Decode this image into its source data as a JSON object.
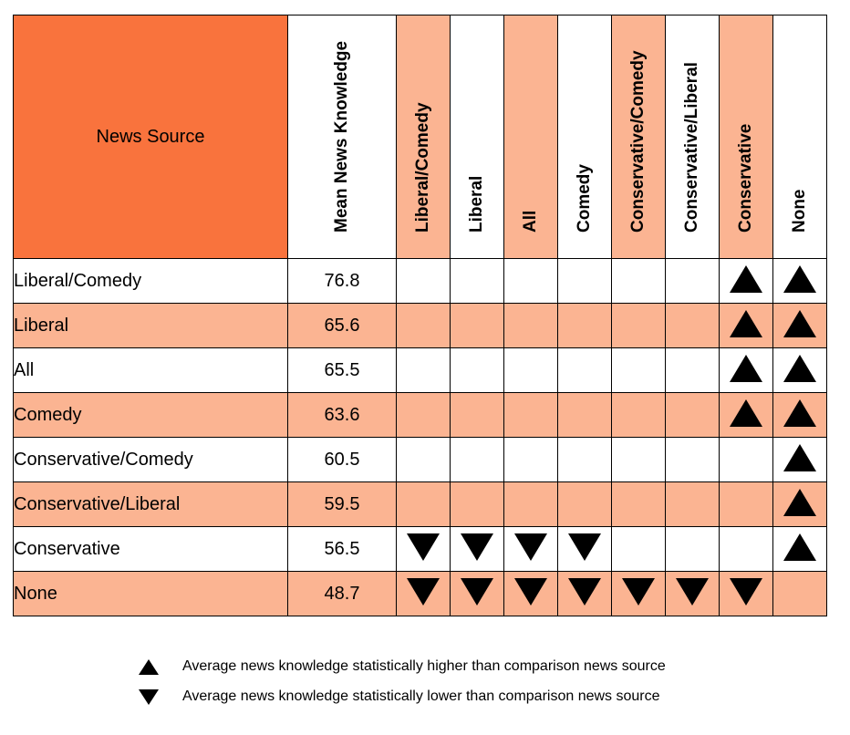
{
  "chart_data": {
    "type": "table",
    "corner_label": "News Source",
    "mean_header": "Mean News Knowledge",
    "columns": [
      "Liberal/Comedy",
      "Liberal",
      "All",
      "Comedy",
      "Conservative/Comedy",
      "Conservative/Liberal",
      "Conservative",
      "None"
    ],
    "rows": [
      {
        "source": "Liberal/Comedy",
        "mean": "76.8",
        "marks": [
          "",
          "",
          "",
          "",
          "",
          "",
          "up",
          "up"
        ]
      },
      {
        "source": "Liberal",
        "mean": "65.6",
        "marks": [
          "",
          "",
          "",
          "",
          "",
          "",
          "up",
          "up"
        ]
      },
      {
        "source": "All",
        "mean": "65.5",
        "marks": [
          "",
          "",
          "",
          "",
          "",
          "",
          "up",
          "up"
        ]
      },
      {
        "source": "Comedy",
        "mean": "63.6",
        "marks": [
          "",
          "",
          "",
          "",
          "",
          "",
          "up",
          "up"
        ]
      },
      {
        "source": "Conservative/Comedy",
        "mean": "60.5",
        "marks": [
          "",
          "",
          "",
          "",
          "",
          "",
          "",
          "up"
        ]
      },
      {
        "source": "Conservative/Liberal",
        "mean": "59.5",
        "marks": [
          "",
          "",
          "",
          "",
          "",
          "",
          "",
          "up"
        ]
      },
      {
        "source": "Conservative",
        "mean": "56.5",
        "marks": [
          "down",
          "down",
          "down",
          "down",
          "",
          "",
          "",
          "up"
        ]
      },
      {
        "source": "None",
        "mean": "48.7",
        "marks": [
          "down",
          "down",
          "down",
          "down",
          "down",
          "down",
          "down",
          ""
        ]
      }
    ],
    "legend": {
      "higher": "Average news knowledge statistically higher than comparison news source",
      "lower": "Average news knowledge statistically lower than comparison news source"
    },
    "colors": {
      "corner": "#f9733d",
      "shade": "#fbb492",
      "plain": "#ffffff",
      "marker": "#000000"
    }
  }
}
